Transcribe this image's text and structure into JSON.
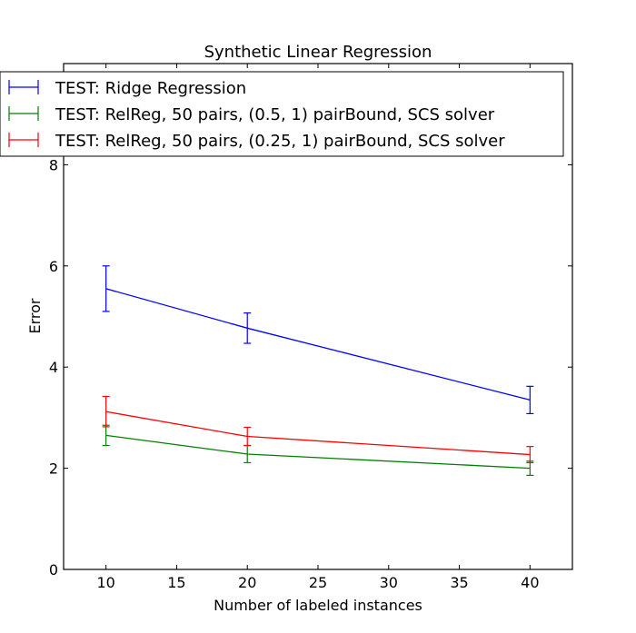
{
  "chart_data": {
    "type": "line",
    "title": "Synthetic Linear Regression",
    "xlabel": "Number of labeled instances",
    "ylabel": "Error",
    "xlim": [
      7,
      43
    ],
    "ylim": [
      0,
      10
    ],
    "xticks": [
      10,
      15,
      20,
      25,
      30,
      35,
      40
    ],
    "yticks": [
      0,
      2,
      4,
      6,
      8
    ],
    "grid": false,
    "legend_position": "top",
    "x": [
      10,
      20,
      40
    ],
    "series": [
      {
        "name": "TEST: Ridge Regression",
        "color": "#0000ff",
        "values": [
          5.55,
          4.77,
          3.35
        ],
        "errors": [
          0.45,
          0.3,
          0.27
        ]
      },
      {
        "name": "TEST: RelReg, 50 pairs, (0.5, 1) pairBound, SCS solver",
        "color": "#008000",
        "values": [
          2.65,
          2.28,
          2.0
        ],
        "errors": [
          0.2,
          0.17,
          0.14
        ]
      },
      {
        "name": "TEST: RelReg, 50 pairs, (0.25, 1) pairBound, SCS solver",
        "color": "#ff0000",
        "values": [
          3.12,
          2.63,
          2.27
        ],
        "errors": [
          0.3,
          0.18,
          0.16
        ]
      }
    ]
  }
}
